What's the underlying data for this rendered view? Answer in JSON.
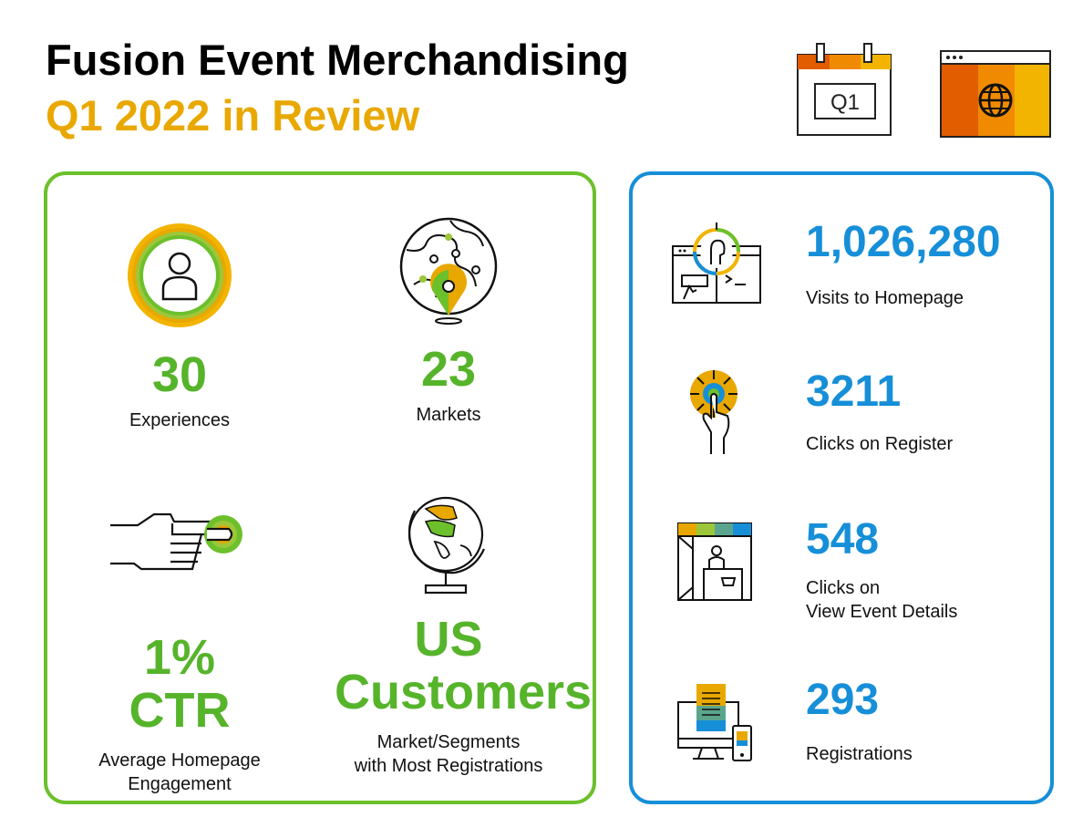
{
  "header": {
    "title": "Fusion Event Merchandising",
    "subtitle": "Q1 2022 in Review",
    "calendar_icon_text": "Q1",
    "icons": [
      "calendar-q1-icon",
      "browser-globe-icon"
    ]
  },
  "colors": {
    "green": "#56b42b",
    "green_border": "#6cc02b",
    "blue": "#168fd8",
    "orange": "#e9a800",
    "dark_orange": "#e25c00"
  },
  "left_panel": {
    "experiences": {
      "value": "30",
      "label": "Experiences",
      "icon": "person-circle-icon"
    },
    "markets": {
      "value": "23",
      "label": "Markets",
      "icon": "globe-pin-icon"
    },
    "ctr": {
      "value_line1": "1%",
      "value_line2": "CTR",
      "label_line1": "Average Homepage",
      "label_line2": "Engagement",
      "icon": "hand-pointing-icon"
    },
    "customers": {
      "value_line1": "US",
      "value_line2": "Customers",
      "label_line1": "Market/Segments",
      "label_line2": "with Most Registrations",
      "icon": "desk-globe-icon"
    }
  },
  "right_panel": {
    "stats": [
      {
        "value": "1,026,280",
        "label_line1": "Visits to Homepage",
        "label_line2": "",
        "icon": "homepage-visit-icon"
      },
      {
        "value": "3211",
        "label_line1": "Clicks on Register",
        "label_line2": "",
        "icon": "click-tap-icon"
      },
      {
        "value": "548",
        "label_line1": "Clicks on",
        "label_line2": "View Event Details",
        "icon": "event-booth-icon"
      },
      {
        "value": "293",
        "label_line1": "Registrations",
        "label_line2": "",
        "icon": "devices-registration-icon"
      }
    ]
  }
}
